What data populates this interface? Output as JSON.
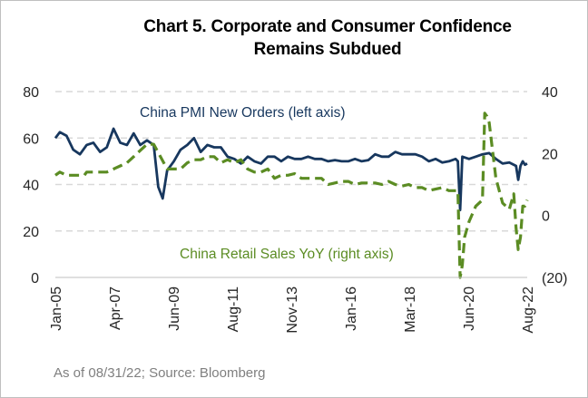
{
  "chart_data": {
    "type": "line",
    "title_lines": [
      "Chart 5. Corporate and Consumer Confidence",
      "Remains Subdued"
    ],
    "source": "As of 08/31/22; Source:  Bloomberg",
    "x_tick_labels": [
      "Jan-05",
      "Apr-07",
      "Jun-09",
      "Aug-11",
      "Nov-13",
      "Jan-16",
      "Mar-18",
      "Jun-20",
      "Aug-22"
    ],
    "x_range": [
      "2005-01",
      "2022-08"
    ],
    "left_axis": {
      "ylim": [
        0,
        80
      ],
      "ticks": [
        0,
        20,
        40,
        60,
        80
      ],
      "tick_labels": [
        "0",
        "20",
        "40",
        "60",
        "80"
      ]
    },
    "right_axis": {
      "ylim": [
        -20,
        40
      ],
      "ticks": [
        -20,
        0,
        20,
        40
      ],
      "tick_labels": [
        "(20)",
        "0",
        "20",
        "40"
      ]
    },
    "grid": true,
    "series": [
      {
        "name": "China PMI New Orders  (left axis)",
        "axis": "left",
        "color": "#17375e",
        "style": "solid",
        "points": [
          [
            "2005-01",
            60
          ],
          [
            "2005-03",
            62.5
          ],
          [
            "2005-06",
            61
          ],
          [
            "2005-09",
            55
          ],
          [
            "2005-12",
            53
          ],
          [
            "2006-03",
            57
          ],
          [
            "2006-06",
            58
          ],
          [
            "2006-09",
            54
          ],
          [
            "2006-12",
            56
          ],
          [
            "2007-03",
            64
          ],
          [
            "2007-06",
            58
          ],
          [
            "2007-09",
            57
          ],
          [
            "2007-12",
            62
          ],
          [
            "2008-03",
            57
          ],
          [
            "2008-06",
            59
          ],
          [
            "2008-09",
            57
          ],
          [
            "2008-11",
            39
          ],
          [
            "2009-01",
            34
          ],
          [
            "2009-03",
            46
          ],
          [
            "2009-06",
            50
          ],
          [
            "2009-09",
            55
          ],
          [
            "2009-12",
            57
          ],
          [
            "2010-03",
            60
          ],
          [
            "2010-06",
            54
          ],
          [
            "2010-09",
            57
          ],
          [
            "2010-12",
            56
          ],
          [
            "2011-03",
            56
          ],
          [
            "2011-06",
            52
          ],
          [
            "2011-09",
            51
          ],
          [
            "2011-12",
            49
          ],
          [
            "2012-03",
            52
          ],
          [
            "2012-06",
            50
          ],
          [
            "2012-09",
            49
          ],
          [
            "2012-12",
            52
          ],
          [
            "2013-03",
            52
          ],
          [
            "2013-06",
            50
          ],
          [
            "2013-09",
            52
          ],
          [
            "2013-12",
            51
          ],
          [
            "2014-03",
            51
          ],
          [
            "2014-06",
            52
          ],
          [
            "2014-09",
            51
          ],
          [
            "2014-12",
            51
          ],
          [
            "2015-03",
            50
          ],
          [
            "2015-06",
            50.5
          ],
          [
            "2015-09",
            50
          ],
          [
            "2015-12",
            50
          ],
          [
            "2016-03",
            51
          ],
          [
            "2016-06",
            50
          ],
          [
            "2016-09",
            50.5
          ],
          [
            "2016-12",
            53
          ],
          [
            "2017-03",
            52
          ],
          [
            "2017-06",
            52
          ],
          [
            "2017-09",
            54
          ],
          [
            "2017-12",
            53
          ],
          [
            "2018-03",
            53
          ],
          [
            "2018-06",
            53
          ],
          [
            "2018-09",
            52
          ],
          [
            "2018-12",
            50
          ],
          [
            "2019-03",
            51
          ],
          [
            "2019-06",
            49.5
          ],
          [
            "2019-09",
            50
          ],
          [
            "2019-12",
            51
          ],
          [
            "2020-01",
            50
          ],
          [
            "2020-02",
            29
          ],
          [
            "2020-03",
            52
          ],
          [
            "2020-06",
            51
          ],
          [
            "2020-09",
            52
          ],
          [
            "2020-12",
            53
          ],
          [
            "2021-03",
            53.5
          ],
          [
            "2021-06",
            51
          ],
          [
            "2021-09",
            49
          ],
          [
            "2021-12",
            49.5
          ],
          [
            "2022-03",
            48
          ],
          [
            "2022-04",
            42
          ],
          [
            "2022-05",
            48
          ],
          [
            "2022-06",
            50
          ],
          [
            "2022-07",
            48.5
          ],
          [
            "2022-08",
            49
          ]
        ]
      },
      {
        "name": "China Retail Sales YoY (right axis)",
        "axis": "right",
        "color": "#5b8c23",
        "style": "dashed",
        "points": [
          [
            "2005-01",
            13
          ],
          [
            "2005-03",
            14
          ],
          [
            "2005-06",
            13
          ],
          [
            "2005-09",
            13
          ],
          [
            "2005-12",
            13
          ],
          [
            "2006-02",
            13
          ],
          [
            "2006-03",
            14
          ],
          [
            "2006-06",
            14
          ],
          [
            "2006-09",
            14
          ],
          [
            "2006-12",
            14
          ],
          [
            "2007-03",
            15
          ],
          [
            "2007-06",
            16
          ],
          [
            "2007-09",
            17
          ],
          [
            "2007-12",
            19
          ],
          [
            "2008-03",
            21
          ],
          [
            "2008-06",
            23
          ],
          [
            "2008-09",
            23
          ],
          [
            "2008-12",
            19
          ],
          [
            "2009-03",
            15
          ],
          [
            "2009-06",
            15
          ],
          [
            "2009-09",
            15
          ],
          [
            "2009-12",
            17
          ],
          [
            "2010-03",
            18
          ],
          [
            "2010-06",
            18
          ],
          [
            "2010-09",
            19
          ],
          [
            "2010-12",
            19
          ],
          [
            "2011-03",
            17
          ],
          [
            "2011-06",
            18
          ],
          [
            "2011-09",
            17
          ],
          [
            "2011-12",
            18
          ],
          [
            "2012-03",
            15
          ],
          [
            "2012-06",
            14
          ],
          [
            "2012-09",
            14
          ],
          [
            "2012-12",
            15
          ],
          [
            "2013-03",
            12
          ],
          [
            "2013-06",
            13
          ],
          [
            "2013-09",
            13
          ],
          [
            "2013-12",
            13.5
          ],
          [
            "2014-03",
            12
          ],
          [
            "2014-06",
            12
          ],
          [
            "2014-09",
            12
          ],
          [
            "2014-12",
            12
          ],
          [
            "2015-03",
            10
          ],
          [
            "2015-06",
            10.5
          ],
          [
            "2015-09",
            11
          ],
          [
            "2015-12",
            11
          ],
          [
            "2016-03",
            10
          ],
          [
            "2016-06",
            10.5
          ],
          [
            "2016-09",
            10.5
          ],
          [
            "2016-12",
            10.5
          ],
          [
            "2017-03",
            10
          ],
          [
            "2017-06",
            11
          ],
          [
            "2017-09",
            10
          ],
          [
            "2017-12",
            9.5
          ],
          [
            "2018-03",
            10
          ],
          [
            "2018-06",
            9
          ],
          [
            "2018-09",
            9
          ],
          [
            "2018-12",
            8
          ],
          [
            "2019-03",
            8.5
          ],
          [
            "2019-06",
            9
          ],
          [
            "2019-09",
            8
          ],
          [
            "2019-12",
            8
          ],
          [
            "2020-01",
            8
          ],
          [
            "2020-02",
            -20
          ],
          [
            "2020-03",
            -16
          ],
          [
            "2020-04",
            -7
          ],
          [
            "2020-06",
            -2
          ],
          [
            "2020-09",
            3
          ],
          [
            "2020-12",
            5
          ],
          [
            "2021-01",
            33
          ],
          [
            "2021-02",
            32
          ],
          [
            "2021-03",
            30
          ],
          [
            "2021-06",
            12
          ],
          [
            "2021-09",
            4
          ],
          [
            "2021-12",
            2
          ],
          [
            "2022-02",
            7
          ],
          [
            "2022-03",
            -4
          ],
          [
            "2022-04",
            -11
          ],
          [
            "2022-05",
            -7
          ],
          [
            "2022-06",
            3
          ],
          [
            "2022-07",
            3
          ],
          [
            "2022-08",
            5
          ]
        ]
      }
    ]
  }
}
